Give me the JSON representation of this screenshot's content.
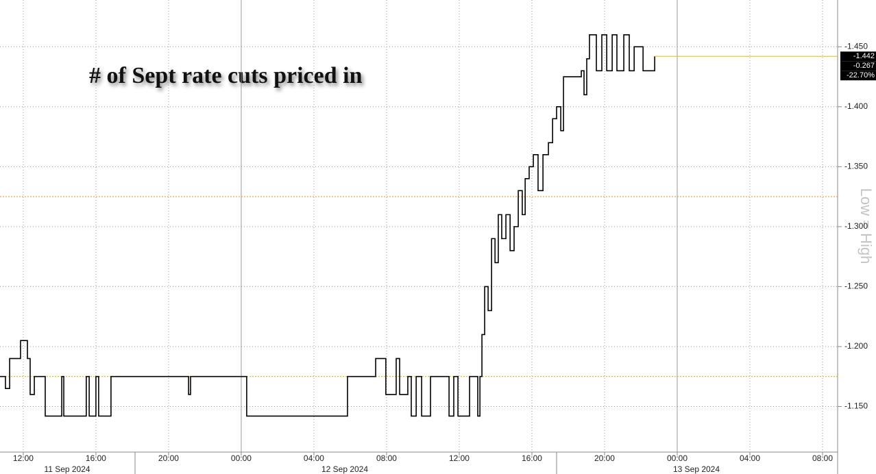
{
  "chart_data": {
    "type": "line",
    "step": true,
    "title": "# of Sept rate cuts priced in",
    "axis_note": "Low = High",
    "color": "#000000",
    "x": [
      10.72,
      11.02,
      11.25,
      11.85,
      12.23,
      12.38,
      12.61,
      13.21,
      14.12,
      14.23,
      15.47,
      15.63,
      16.0,
      16.15,
      16.83,
      21.1,
      21.21,
      24.3,
      29.85,
      31.4,
      31.96,
      32.53,
      32.72,
      33.17,
      33.36,
      33.63,
      33.93,
      34.42,
      35.44,
      35.7,
      35.93,
      36.57,
      37.02,
      37.14,
      37.25,
      37.4,
      37.59,
      37.78,
      37.97,
      38.15,
      38.34,
      38.57,
      38.8,
      39.02,
      39.25,
      39.47,
      39.63,
      39.85,
      40.08,
      40.34,
      40.61,
      40.91,
      41.14,
      41.36,
      41.59,
      41.74,
      42.72,
      42.87,
      43.02,
      43.17,
      43.55,
      43.85,
      44.12,
      44.42,
      44.68,
      45.06,
      45.36,
      45.63,
      46.12,
      46.76
    ],
    "values": [
      -1.175,
      -1.165,
      -1.19,
      -1.205,
      -1.19,
      -1.16,
      -1.175,
      -1.142,
      -1.175,
      -1.142,
      -1.175,
      -1.142,
      -1.175,
      -1.142,
      -1.175,
      -1.16,
      -1.175,
      -1.142,
      -1.175,
      -1.19,
      -1.16,
      -1.19,
      -1.16,
      -1.175,
      -1.142,
      -1.175,
      -1.142,
      -1.175,
      -1.142,
      -1.175,
      -1.142,
      -1.175,
      -1.142,
      -1.175,
      -1.21,
      -1.25,
      -1.23,
      -1.29,
      -1.27,
      -1.31,
      -1.29,
      -1.31,
      -1.28,
      -1.3,
      -1.33,
      -1.31,
      -1.34,
      -1.35,
      -1.36,
      -1.33,
      -1.36,
      -1.37,
      -1.39,
      -1.4,
      -1.38,
      -1.425,
      -1.43,
      -1.41,
      -1.44,
      -1.46,
      -1.43,
      -1.46,
      -1.43,
      -1.46,
      -1.43,
      -1.46,
      -1.43,
      -1.45,
      -1.43,
      -1.442
    ],
    "xlim": [
      10.72,
      56.83
    ],
    "xticks": [
      {
        "value": 12,
        "label": "12:00"
      },
      {
        "value": 16,
        "label": "16:00"
      },
      {
        "value": 20,
        "label": "20:00"
      },
      {
        "value": 24,
        "label": "00:00"
      },
      {
        "value": 28,
        "label": "04:00"
      },
      {
        "value": 32,
        "label": "08:00"
      },
      {
        "value": 36,
        "label": "12:00"
      },
      {
        "value": 40,
        "label": "16:00"
      },
      {
        "value": 44,
        "label": "20:00"
      },
      {
        "value": 48,
        "label": "00:00"
      },
      {
        "value": 52,
        "label": "04:00"
      },
      {
        "value": 56,
        "label": "08:00"
      }
    ],
    "dates": [
      "11 Sep 2024",
      "12 Sep 2024",
      "13 Sep 2024"
    ],
    "ylim": [
      -1.112,
      -1.489
    ],
    "yticks": [
      {
        "value": -1.15,
        "label": "-1.150"
      },
      {
        "value": -1.2,
        "label": "-1.200"
      },
      {
        "value": -1.25,
        "label": "-1.250"
      },
      {
        "value": -1.3,
        "label": "-1.300"
      },
      {
        "value": -1.35,
        "label": "-1.350"
      },
      {
        "value": -1.4,
        "label": "-1.400"
      },
      {
        "value": -1.45,
        "label": "-1.450"
      }
    ],
    "reference_lines": [
      {
        "value": -1.325,
        "color": "#f4a259"
      },
      {
        "value": -1.175,
        "color": "#e6bb00"
      }
    ],
    "last_labels": [
      "-1.442",
      "-0.267",
      "-22.70%"
    ],
    "last_line_color": "#e6bb00",
    "grid": true
  }
}
